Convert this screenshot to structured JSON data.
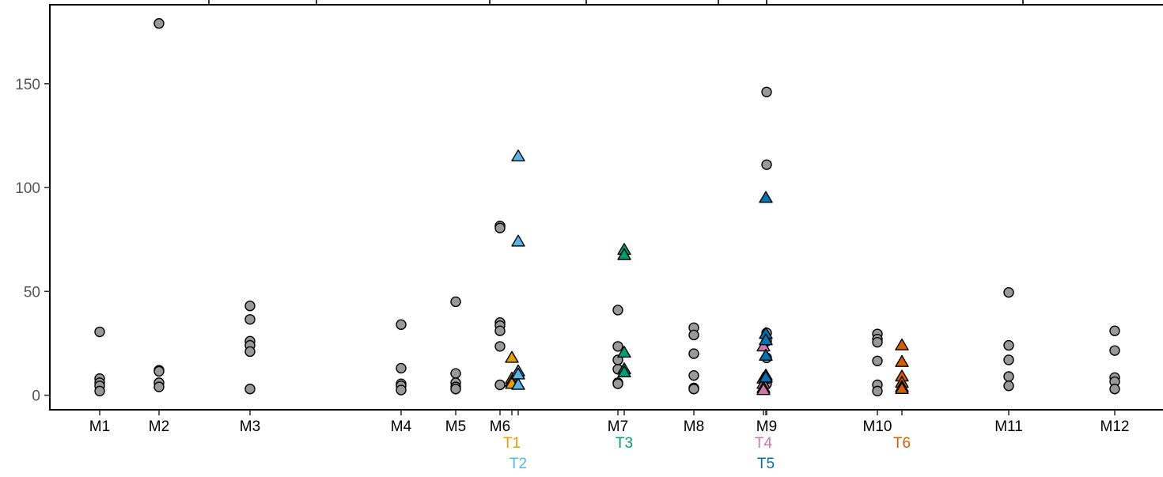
{
  "chart_data": {
    "type": "scatter",
    "title": "",
    "xlabel": "",
    "ylabel": "",
    "ylim": [
      -7,
      188
    ],
    "y_ticks": [
      0,
      50,
      100,
      150
    ],
    "y_tick_labels": [
      "0",
      "50",
      "100",
      "150"
    ],
    "grid": false,
    "colors": {
      "M": "#999999",
      "T1": "#E69F00",
      "T2": "#56B4E9",
      "T3": "#009E73",
      "T4": "#CC79A7",
      "T5": "#0072B2",
      "T6": "#D55E00",
      "tick_text": "#555555",
      "axis": "#000000"
    },
    "groups": [
      {
        "label": "M1",
        "row": 0,
        "series": "M",
        "marker": "circle",
        "values": [
          30.5,
          8,
          6,
          4.5,
          2
        ]
      },
      {
        "label": "M2",
        "row": 0,
        "series": "M",
        "marker": "circle",
        "values": [
          179,
          12,
          11.5,
          6,
          4
        ]
      },
      {
        "label": "M3",
        "row": 0,
        "series": "M",
        "marker": "circle",
        "values": [
          43,
          36.5,
          26,
          24,
          21,
          3
        ]
      },
      {
        "label": "M4",
        "row": 0,
        "series": "M",
        "marker": "circle",
        "values": [
          34,
          13,
          5.5,
          4.5,
          2.5
        ]
      },
      {
        "label": "M5",
        "row": 0,
        "series": "M",
        "marker": "circle",
        "values": [
          45,
          10.5,
          6,
          4,
          3
        ]
      },
      {
        "label": "M6",
        "row": 0,
        "series": "M",
        "marker": "circle",
        "values": [
          81.5,
          80.5,
          35,
          33.5,
          31,
          23.5,
          5
        ]
      },
      {
        "label": "T1",
        "row": 1,
        "series": "T1",
        "marker": "triangle",
        "values": [
          18,
          8,
          6.5,
          5.5
        ]
      },
      {
        "label": "T2",
        "row": 2,
        "series": "T2",
        "marker": "triangle",
        "values": [
          115,
          74,
          11.5,
          10,
          5
        ]
      },
      {
        "label": "M7",
        "row": 0,
        "series": "M",
        "marker": "circle",
        "values": [
          41,
          23.5,
          17,
          12.5,
          6,
          5.5
        ]
      },
      {
        "label": "T3",
        "row": 1,
        "series": "T3",
        "marker": "triangle",
        "values": [
          70,
          67.5,
          20.5,
          12.5,
          11
        ]
      },
      {
        "label": "M8",
        "row": 0,
        "series": "M",
        "marker": "circle",
        "values": [
          32.5,
          29,
          20,
          9.5,
          3.5,
          3
        ]
      },
      {
        "label": "M9",
        "row": 0,
        "series": "M",
        "marker": "circle",
        "values": [
          146,
          111,
          30,
          26,
          18,
          5.5
        ]
      },
      {
        "label": "T4",
        "row": 1,
        "series": "T4",
        "marker": "triangle",
        "values": [
          23.5,
          8,
          5.5,
          3.5,
          2.5
        ]
      },
      {
        "label": "T5",
        "row": 2,
        "series": "T5",
        "marker": "triangle",
        "values": [
          95,
          29.5,
          26.5,
          19,
          9.5,
          8.5
        ]
      },
      {
        "label": "M10",
        "row": 0,
        "series": "M",
        "marker": "circle",
        "values": [
          29.5,
          27,
          25.5,
          16.5,
          5,
          2
        ]
      },
      {
        "label": "T6",
        "row": 1,
        "series": "T6",
        "marker": "triangle",
        "values": [
          24,
          16,
          9,
          6,
          4,
          3
        ]
      },
      {
        "label": "M11",
        "row": 0,
        "series": "M",
        "marker": "circle",
        "values": [
          49.5,
          24,
          17,
          9,
          4.5
        ]
      },
      {
        "label": "M12",
        "row": 0,
        "series": "M",
        "marker": "circle",
        "values": [
          31,
          21.5,
          8.5,
          6.5,
          3
        ]
      }
    ]
  }
}
